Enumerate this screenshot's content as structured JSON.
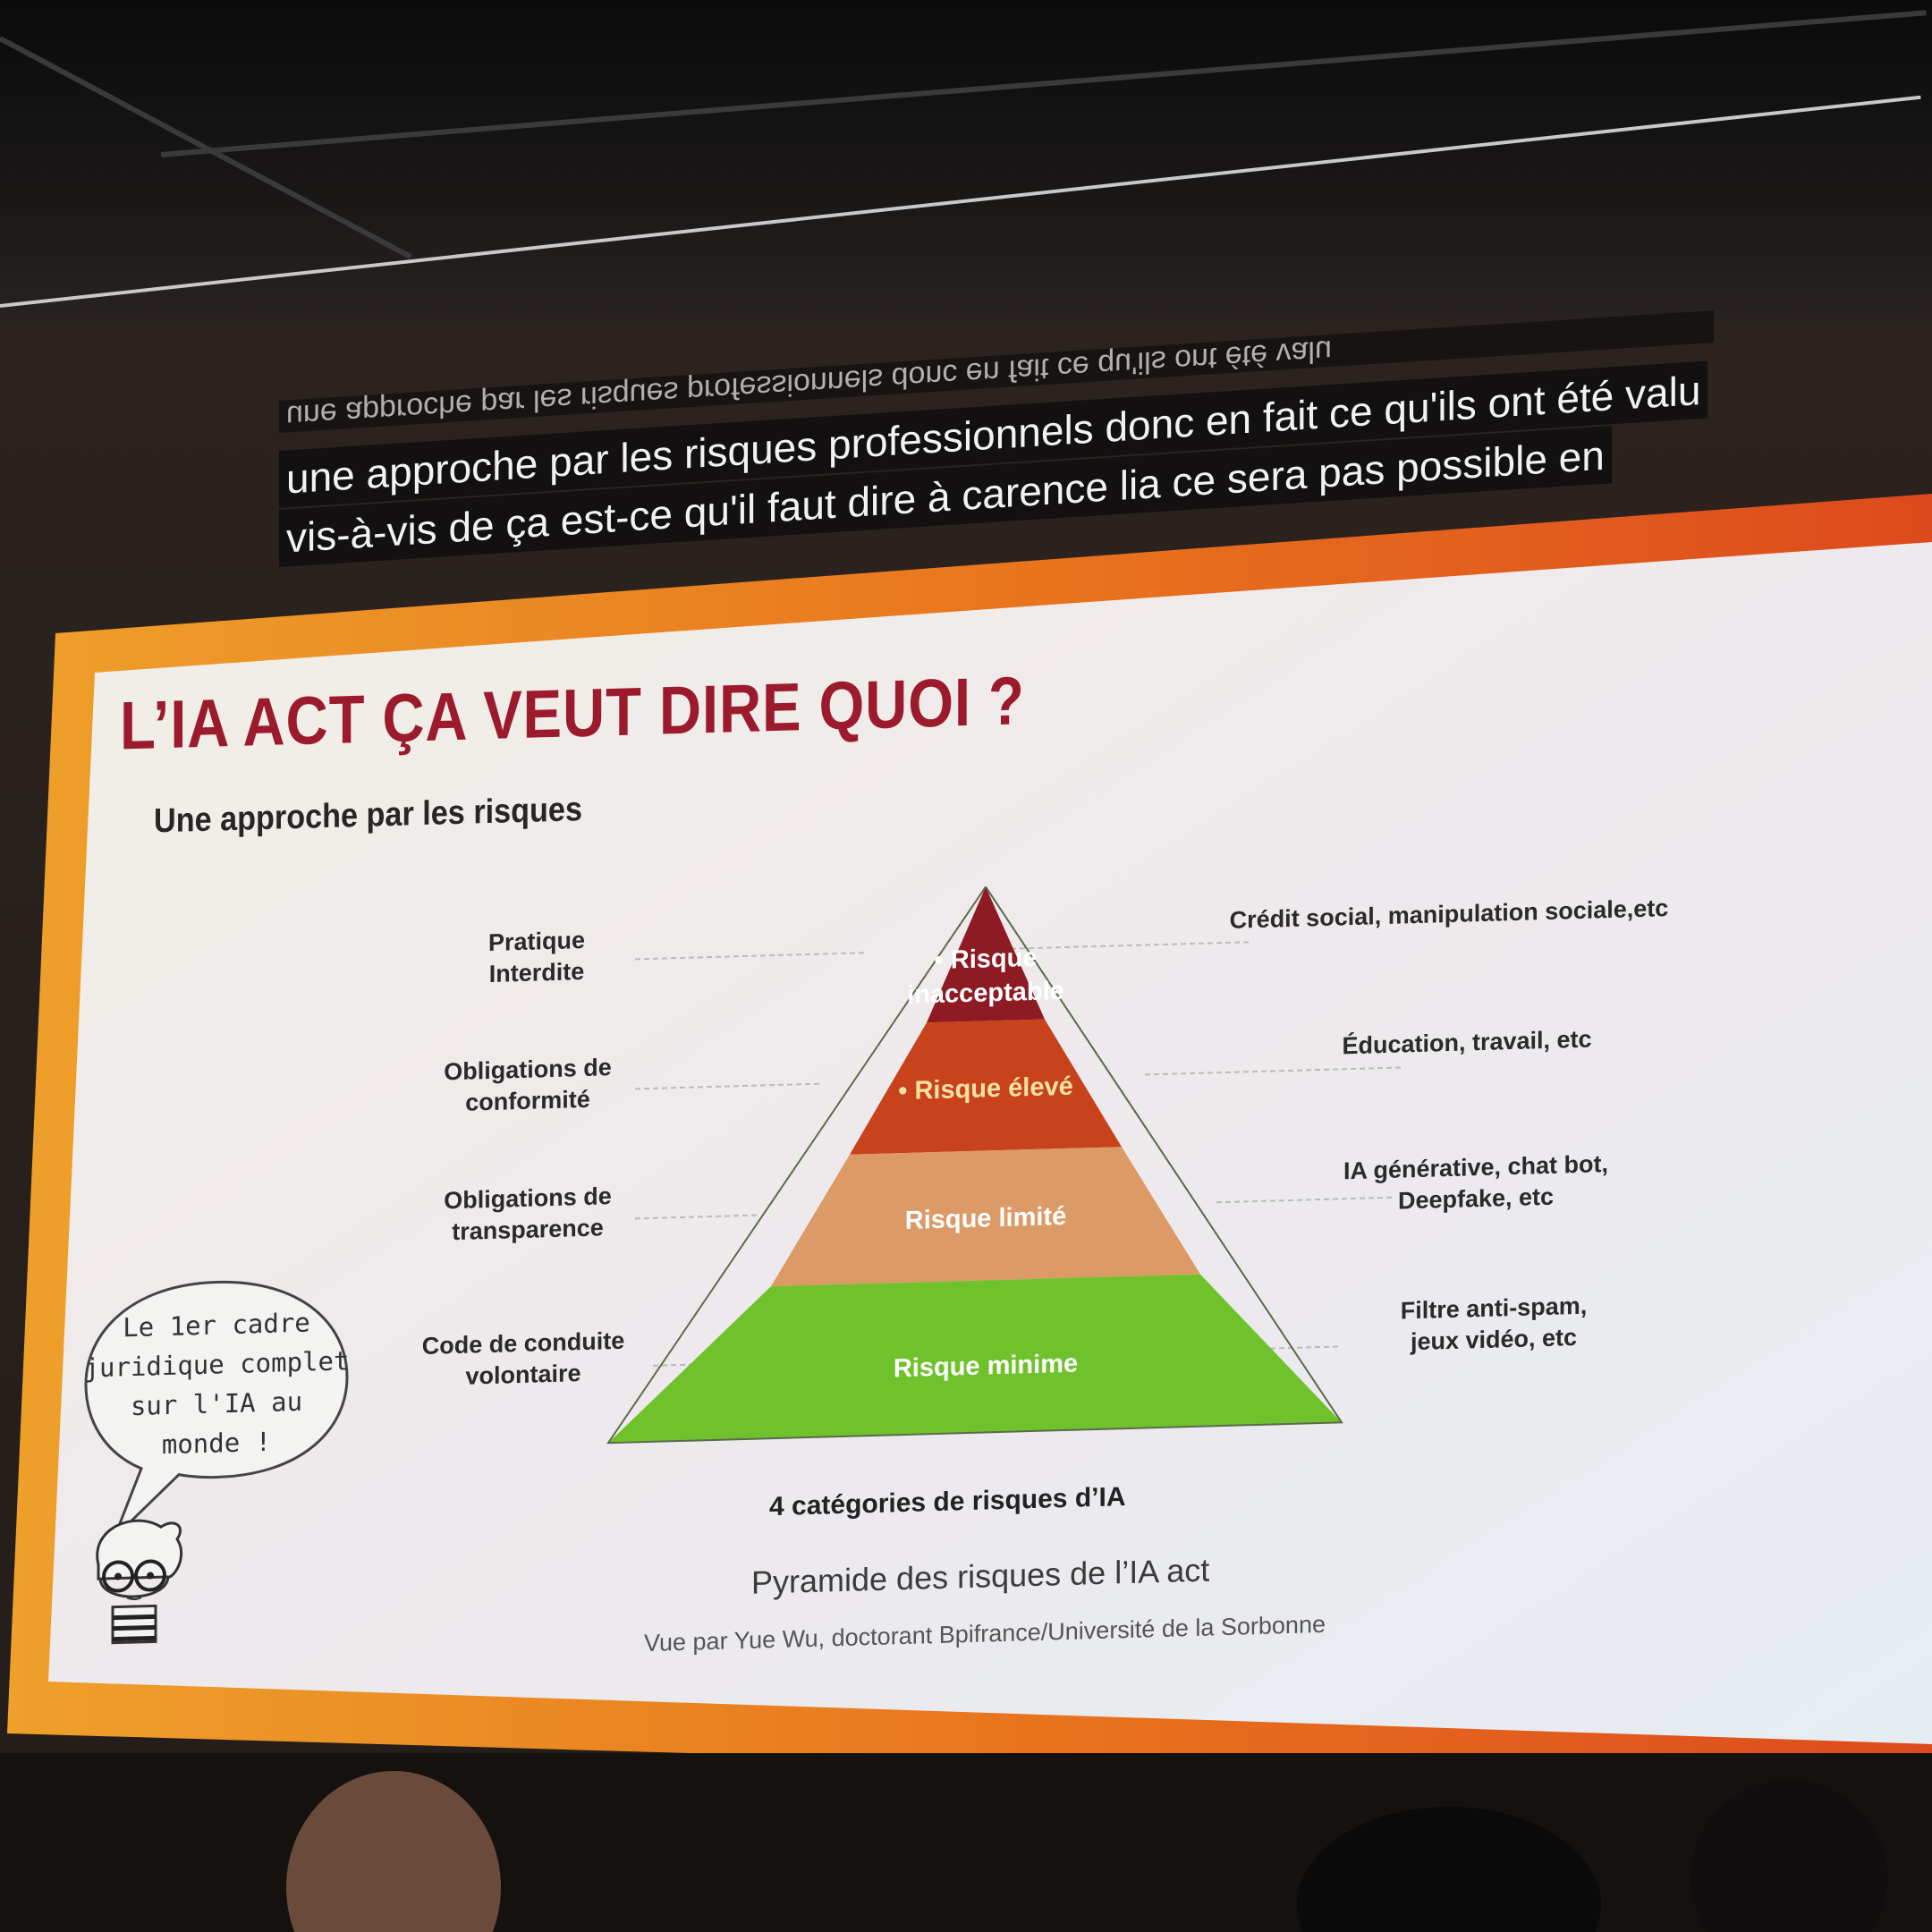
{
  "subtitles": {
    "ghost_line": "une approche par les risques professionnels donc en fait ce qu'ils ont été valu",
    "line1": "une approche par les risques professionnels donc en fait ce qu'ils ont été valu",
    "line2": "vis-à-vis de ça est-ce qu'il faut dire à carence lia ce sera pas possible en"
  },
  "slide": {
    "title": "L’IA ACT ÇA VEUT DIRE QUOI ?",
    "subtitle": "Une approche par les risques",
    "left_labels": [
      "Pratique\nInterdite",
      "Obligations de\nconformité",
      "Obligations de\ntransparence",
      "Code de conduite\nvolontaire"
    ],
    "pyramid_levels": [
      {
        "line1": "• Risque",
        "line2": "inacceptable",
        "color": "#8e1a24"
      },
      {
        "line1": "• Risque élevé",
        "line2": "",
        "color": "#c8421c"
      },
      {
        "line1": "Risque limité",
        "line2": "",
        "color": "#dc9a66"
      },
      {
        "line1": "Risque minime",
        "line2": "",
        "color": "#6fc22c"
      }
    ],
    "right_labels": [
      "Crédit social, manipulation sociale,etc",
      "Éducation, travail, etc",
      "IA générative, chat bot,\nDeepfake, etc",
      "Filtre anti-spam,\njeux vidéo, etc"
    ],
    "caption_bold": "4 catégories de risques d’IA",
    "caption": "Pyramide des risques de l’IA act",
    "credit": "Vue par Yue Wu, doctorant Bpifrance/Université de la Sorbonne",
    "speech_bubble": "Le 1er cadre\njuridique complet\nsur l'IA au\nmonde !"
  },
  "colors": {
    "frame_orange": "#e58a1a",
    "frame_red": "#d8451e",
    "title_red": "#9b1b2d"
  }
}
